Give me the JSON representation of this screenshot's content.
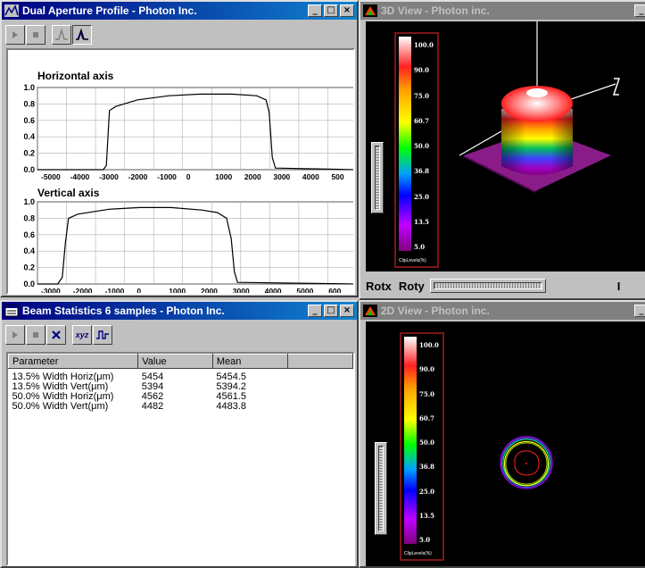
{
  "profile_window": {
    "title": "Dual Aperture Profile - Photon Inc.",
    "buttons": {
      "minimize": "_",
      "maximize": "□",
      "close": "×"
    },
    "horizontal_plot": {
      "title": "Horizontal axis",
      "y_ticks": [
        "1.0",
        "0.8",
        "0.6",
        "0.4",
        "0.2",
        "0.0"
      ],
      "x_ticks": [
        "-5000",
        "-4000",
        "-3000",
        "-2000",
        "-1000",
        "0",
        "1000",
        "2000",
        "3000",
        "4000",
        "500"
      ]
    },
    "vertical_plot": {
      "title": "Vertical axis",
      "y_ticks": [
        "1.0",
        "0.8",
        "0.6",
        "0.4",
        "0.2",
        "0.0"
      ],
      "x_ticks": [
        "-3000",
        "-2000",
        "-1000",
        "0",
        "1000",
        "2000",
        "3000",
        "4000",
        "5000",
        "600"
      ]
    }
  },
  "chart_data": [
    {
      "type": "line",
      "title": "Horizontal axis",
      "xlabel": "",
      "ylabel": "",
      "xlim": [
        -5200,
        5000
      ],
      "ylim": [
        0,
        1
      ],
      "series": [
        {
          "x": [
            -5200,
            -3100,
            -3000,
            -2950,
            -2900,
            -2700,
            -2000,
            -1000,
            0,
            1000,
            1800,
            2100,
            2200,
            2300,
            2400,
            5000
          ],
          "y": [
            0,
            0,
            0.05,
            0.4,
            0.72,
            0.77,
            0.85,
            0.9,
            0.92,
            0.92,
            0.9,
            0.85,
            0.7,
            0.15,
            0.02,
            0
          ]
        }
      ]
    },
    {
      "type": "line",
      "title": "Vertical axis",
      "xlabel": "",
      "ylabel": "",
      "xlim": [
        -4300,
        6000
      ],
      "ylim": [
        0,
        1
      ],
      "series": [
        {
          "x": [
            -4300,
            -3650,
            -3500,
            -3400,
            -3300,
            -3000,
            -2000,
            -1000,
            0,
            1000,
            1500,
            1800,
            1950,
            2050,
            2150,
            6000
          ],
          "y": [
            0,
            0,
            0.08,
            0.5,
            0.8,
            0.85,
            0.91,
            0.93,
            0.93,
            0.9,
            0.87,
            0.8,
            0.55,
            0.15,
            0.02,
            0
          ]
        }
      ]
    }
  ],
  "view3d": {
    "title": "3D View - Photon inc.",
    "levels": [
      "100.0",
      "90.0",
      "75.0",
      "60.7",
      "50.0",
      "36.8",
      "25.0",
      "13.5",
      "5.0"
    ],
    "footer": "ClipLevels(%)",
    "rotx_label": "Rotx",
    "roty_label": "Roty",
    "edge_label": "I"
  },
  "stats_window": {
    "title": "Beam Statistics 6 samples - Photon Inc.",
    "tool_xyz": "xyz",
    "columns": [
      "Parameter",
      "Value",
      "Mean",
      ""
    ],
    "rows": [
      [
        "13.5% Width Horiz(μm)",
        "5454",
        "5454.5"
      ],
      [
        "13.5% Width Vert(μm)",
        "5394",
        "5394.2"
      ],
      [
        "50.0% Width Horiz(μm)",
        "4562",
        "4561.5"
      ],
      [
        "50.0% Width Vert(μm)",
        "4482",
        "4483.8"
      ]
    ]
  },
  "view2d": {
    "title": "2D View - Photon inc.",
    "levels": [
      "100.0",
      "90.0",
      "75.0",
      "60.7",
      "50.0",
      "36.8",
      "25.0",
      "13.5",
      "5.0"
    ],
    "footer": "ClipLevels(%)"
  }
}
